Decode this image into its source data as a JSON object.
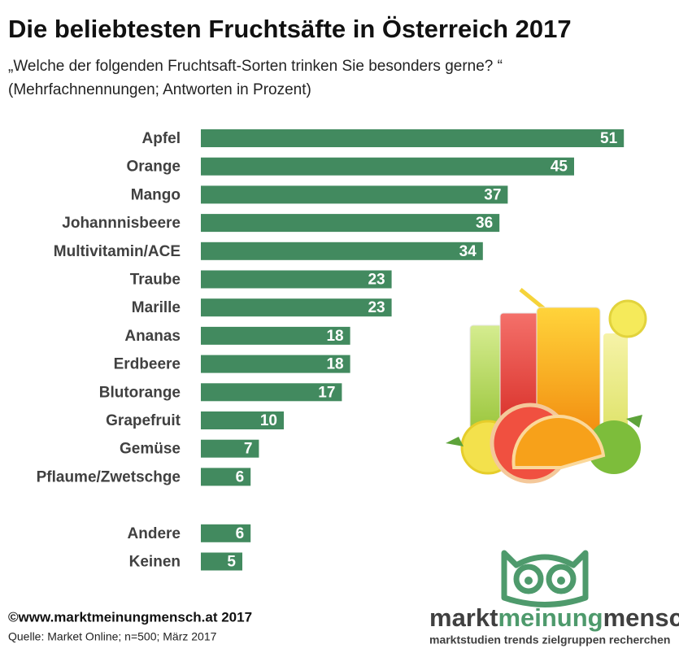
{
  "chart_data": {
    "type": "bar",
    "orientation": "horizontal",
    "title": "Die beliebtesten Fruchtsäfte in Österreich 2017",
    "subtitle": [
      "„Welche der folgenden Fruchtsaft-Sorten trinken Sie besonders gerne? “",
      "(Mehrfachnennungen; Antworten in Prozent)"
    ],
    "categories": [
      "Apfel",
      "Orange",
      "Mango",
      "Johannnisbeere",
      "Multivitamin/ACE",
      "Traube",
      "Marille",
      "Ananas",
      "Erdbeere",
      "Blutorange",
      "Grapefruit",
      "Gemüse",
      "Pflaume/Zwetschge",
      null,
      "Andere",
      "Keinen"
    ],
    "values": [
      51,
      45,
      37,
      36,
      34,
      23,
      23,
      18,
      18,
      17,
      10,
      7,
      6,
      null,
      6,
      5
    ],
    "color": "#428a5f"
  },
  "footer": {
    "copyright": "©www.marktmeinungmensch.at 2017",
    "source": "Quelle: Market Online; n=500; März 2017"
  },
  "logo": {
    "parts": [
      "markt",
      "meinung",
      "mensch"
    ],
    "tagline": "marktstudien trends zielgruppen recherchen"
  }
}
